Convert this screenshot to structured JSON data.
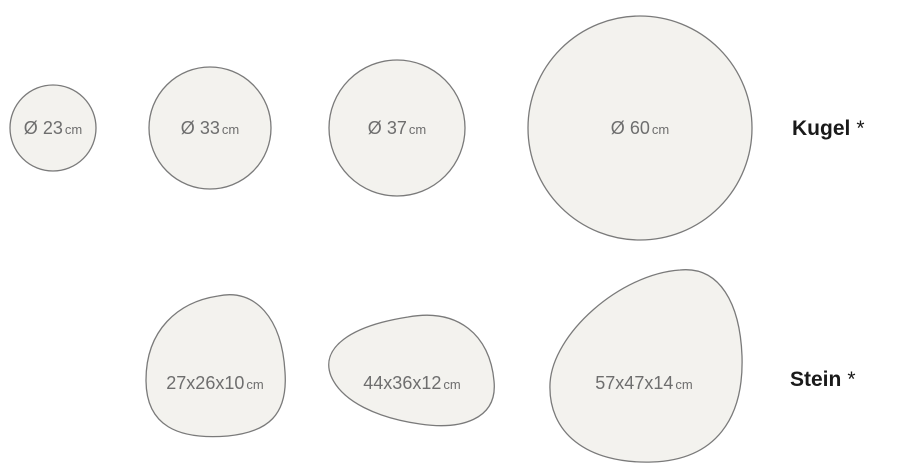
{
  "rows": {
    "kugel": {
      "name": "Kugel",
      "mark": "*",
      "items": [
        {
          "prefix": "Ø",
          "value": "23",
          "unit": "cm"
        },
        {
          "prefix": "Ø",
          "value": "33",
          "unit": "cm"
        },
        {
          "prefix": "Ø",
          "value": "37",
          "unit": "cm"
        },
        {
          "prefix": "Ø",
          "value": "60",
          "unit": "cm"
        }
      ]
    },
    "stein": {
      "name": "Stein",
      "mark": "*",
      "items": [
        {
          "value": "27x26x10",
          "unit": "cm"
        },
        {
          "value": "44x36x12",
          "unit": "cm"
        },
        {
          "value": "57x47x14",
          "unit": "cm"
        }
      ]
    }
  },
  "colors": {
    "shape_fill": "#f3f2ee",
    "shape_stroke": "#7a7a7a",
    "label_text": "#6e6e6e",
    "row_label_text": "#1a1a1a"
  }
}
